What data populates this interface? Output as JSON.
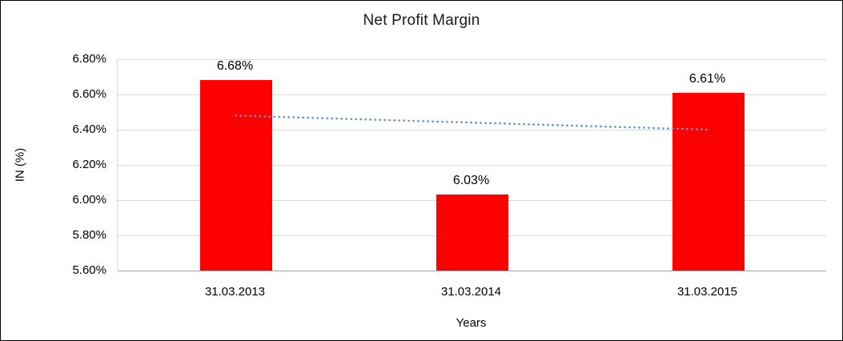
{
  "chart_data": {
    "type": "bar",
    "title": "Net Profit Margin",
    "xlabel": "Years",
    "ylabel": "IN (%)",
    "categories": [
      "31.03.2013",
      "31.03.2014",
      "31.03.2015"
    ],
    "values": [
      6.68,
      6.03,
      6.61
    ],
    "data_labels": [
      "6.68%",
      "6.03%",
      "6.61%"
    ],
    "ylim": [
      5.6,
      6.8
    ],
    "ytick_step": 0.2,
    "ytick_labels": [
      "5.60%",
      "5.80%",
      "6.00%",
      "6.20%",
      "6.40%",
      "6.60%",
      "6.80%"
    ],
    "grid": true,
    "legend_position": "none",
    "bar_color": "#ff0000",
    "trendline": {
      "style": "dotted",
      "color": "#5b9bd5",
      "start_value": 6.48,
      "end_value": 6.4
    }
  }
}
